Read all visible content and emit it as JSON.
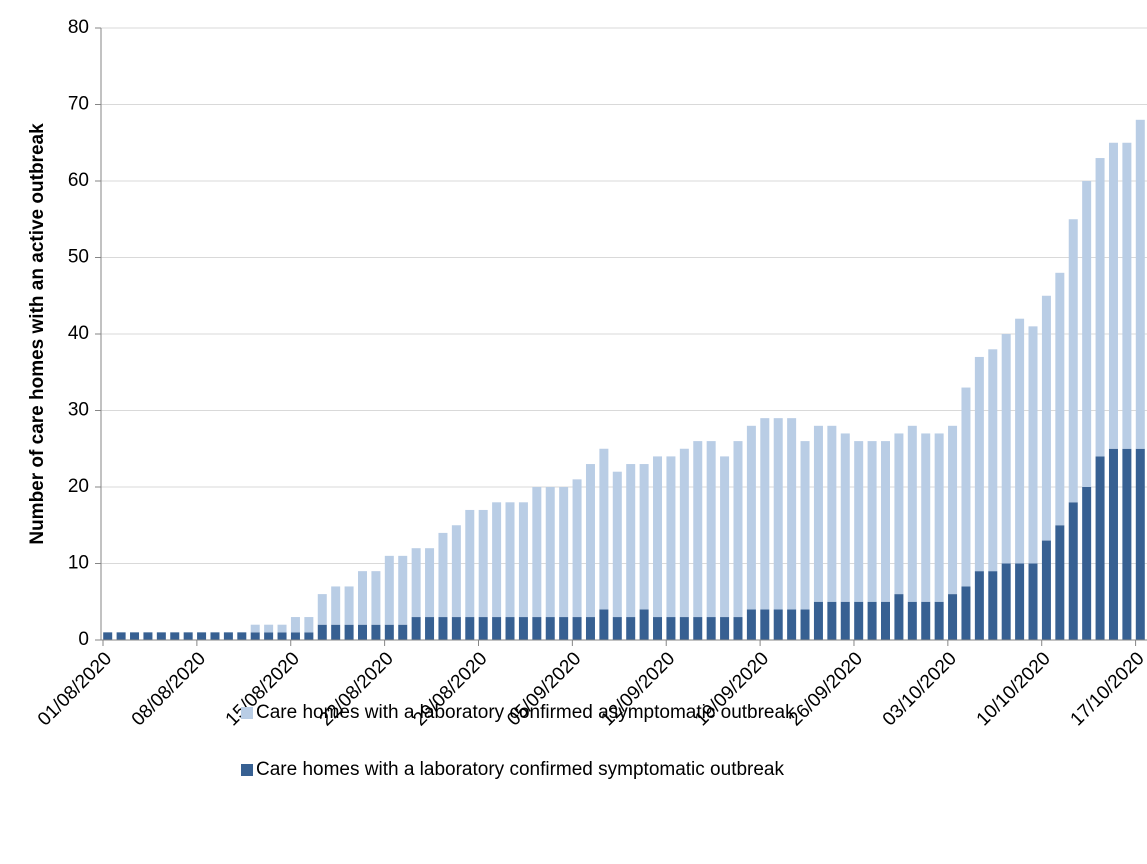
{
  "chart_data": {
    "type": "stacked-bar",
    "y_label": "Number of care homes with an active outbreak",
    "categories": [
      "01/08/2020",
      null,
      null,
      null,
      null,
      null,
      null,
      "08/08/2020",
      null,
      null,
      null,
      null,
      null,
      null,
      "15/08/2020",
      null,
      null,
      null,
      null,
      null,
      null,
      "22/08/2020",
      null,
      null,
      null,
      null,
      null,
      null,
      "29/08/2020",
      null,
      null,
      null,
      null,
      null,
      null,
      "05/09/2020",
      null,
      null,
      null,
      null,
      null,
      null,
      "12/09/2020",
      null,
      null,
      null,
      null,
      null,
      null,
      "19/09/2020",
      null,
      null,
      null,
      null,
      null,
      null,
      "26/09/2020",
      null,
      null,
      null,
      null,
      null,
      null,
      "03/10/2020",
      null,
      null,
      null,
      null,
      null,
      null,
      "10/10/2020",
      null,
      null,
      null,
      null,
      null,
      null,
      "17/10/2020"
    ],
    "series": [
      {
        "name": "Care homes with a laboratory confirmed symptomatic outbreak",
        "color": "#376092",
        "values": [
          1,
          1,
          1,
          1,
          1,
          1,
          1,
          1,
          1,
          1,
          1,
          1,
          1,
          1,
          1,
          1,
          2,
          2,
          2,
          2,
          2,
          2,
          2,
          3,
          3,
          3,
          3,
          3,
          3,
          3,
          3,
          3,
          3,
          3,
          3,
          3,
          3,
          4,
          3,
          3,
          4,
          3,
          3,
          3,
          3,
          3,
          3,
          3,
          4,
          4,
          4,
          4,
          4,
          5,
          5,
          5,
          5,
          5,
          5,
          6,
          5,
          5,
          5,
          6,
          7,
          9,
          9,
          10,
          10,
          10,
          13,
          15,
          18,
          20,
          24,
          25,
          25,
          25
        ]
      },
      {
        "name": "Care homes with a laboratory confirmed asymptomatic outbreak",
        "color": "#b9cde5",
        "values": [
          0,
          0,
          0,
          0,
          0,
          0,
          0,
          0,
          0,
          0,
          0,
          1,
          1,
          1,
          2,
          2,
          4,
          5,
          5,
          7,
          7,
          9,
          9,
          9,
          9,
          11,
          12,
          14,
          14,
          15,
          15,
          15,
          17,
          17,
          17,
          18,
          20,
          21,
          19,
          20,
          19,
          21,
          21,
          22,
          23,
          23,
          21,
          23,
          24,
          25,
          25,
          25,
          22,
          23,
          23,
          22,
          21,
          21,
          21,
          21,
          23,
          22,
          22,
          22,
          26,
          28,
          29,
          30,
          32,
          31,
          32,
          33,
          37,
          40,
          39,
          40,
          40,
          43
        ]
      }
    ],
    "ylim": [
      0,
      80
    ],
    "yticks": [
      0,
      10,
      20,
      30,
      40,
      50,
      60,
      70,
      80
    ],
    "grid": true
  }
}
